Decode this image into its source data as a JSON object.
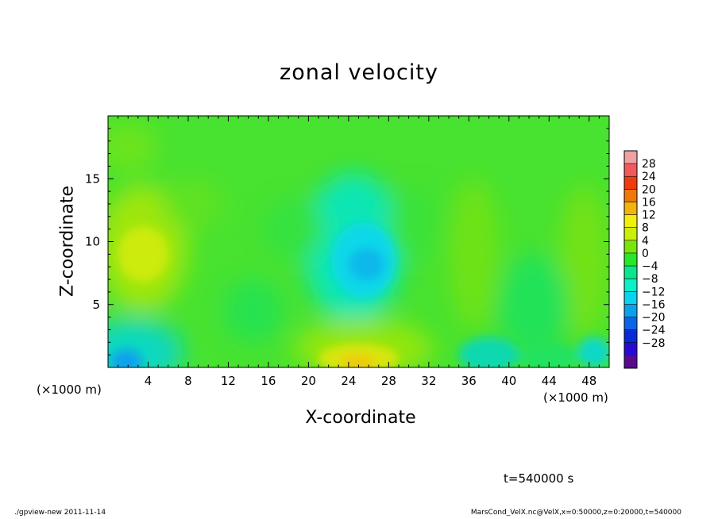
{
  "chart_data": {
    "type": "heatmap",
    "title": "zonal velocity",
    "xlabel": "X-coordinate",
    "ylabel": "Z-coordinate",
    "x_unit": "(×1000 m)",
    "x_unit_right": "(×1000 m)",
    "xlim": [
      0,
      50
    ],
    "ylim": [
      0,
      20
    ],
    "x_ticks": [
      4,
      8,
      12,
      16,
      20,
      24,
      28,
      32,
      36,
      40,
      44,
      48
    ],
    "y_ticks": [
      5,
      10,
      15
    ],
    "colorbar": {
      "levels": [
        -32,
        -28,
        -24,
        -20,
        -16,
        -12,
        -8,
        -4,
        0,
        4,
        8,
        12,
        16,
        20,
        24,
        28,
        32
      ],
      "tick_labels": [
        "28",
        "24",
        "20",
        "16",
        "12",
        "8",
        "4",
        "0",
        "−4",
        "−8",
        "−12",
        "−16",
        "−20",
        "−24",
        "−28"
      ],
      "colors": [
        "#5a0a8c",
        "#2a0ad2",
        "#0a2ad8",
        "#0a64e6",
        "#0aa0ee",
        "#0ad2f0",
        "#0af0c8",
        "#0ae68c",
        "#28e628",
        "#78e60a",
        "#c8f00a",
        "#f0f00a",
        "#f0b40a",
        "#f0780a",
        "#f03c0a",
        "#f05a5a",
        "#f0a0a0"
      ]
    },
    "features": [
      {
        "desc": "cyan minimum",
        "x": 25.8,
        "z": 8.2,
        "value": -10
      },
      {
        "desc": "blue minimum near ground",
        "x": 2.0,
        "z": 0.5,
        "value": -13
      },
      {
        "desc": "yellow maximum near ground",
        "x": 25.5,
        "z": 0.6,
        "value": 11
      },
      {
        "desc": "yellow maximum left",
        "x": 3.5,
        "z": 9.0,
        "value": 9
      }
    ],
    "time_label": "t=540000 s"
  },
  "footer": {
    "left": "./gpview-new   2011-11-14",
    "right": "MarsCond_VelX.nc@VelX,x=0:50000,z=0:20000,t=540000"
  }
}
